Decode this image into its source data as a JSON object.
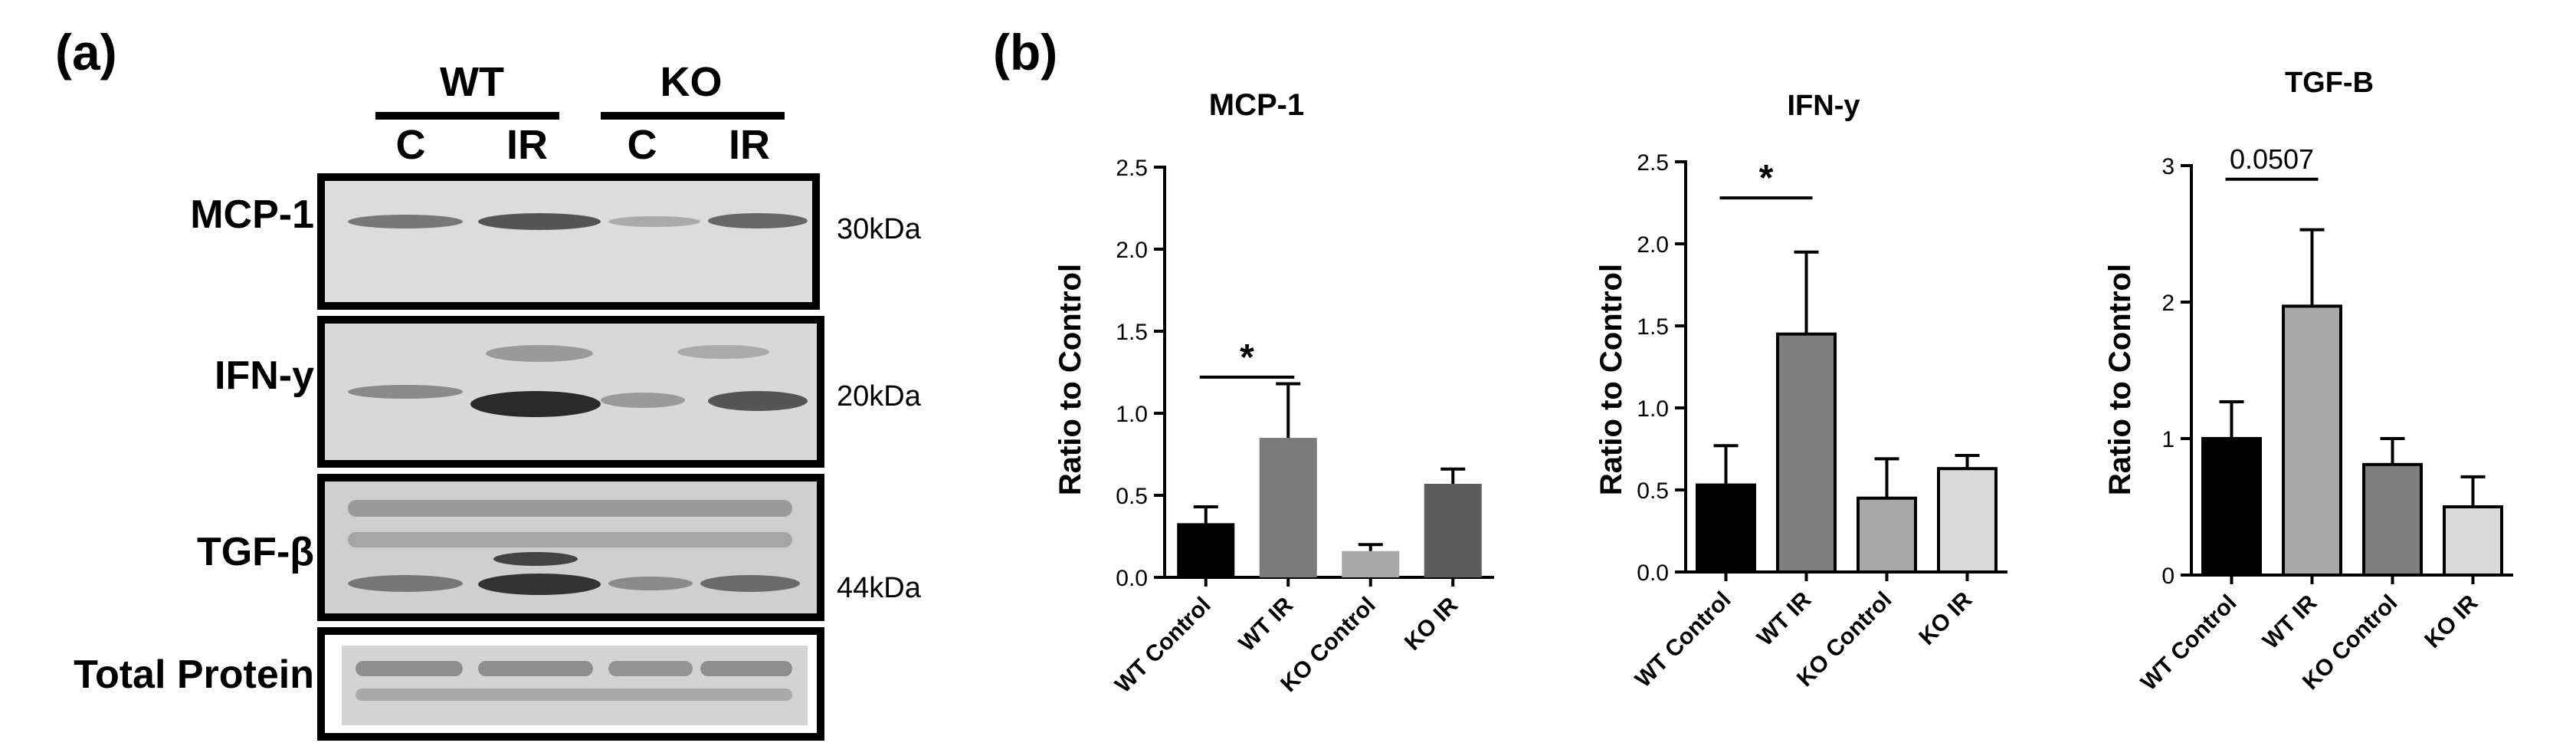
{
  "blot": {
    "panel_label": "(a)",
    "groups": [
      "WT",
      "KO"
    ],
    "lanes": [
      "C",
      "IR",
      "C",
      "IR"
    ],
    "rows": [
      {
        "label": "MCP-1",
        "kda": "30kDa"
      },
      {
        "label": "IFN-y",
        "kda": "20kDa"
      },
      {
        "label": "TGF-β",
        "kda": "44kDa"
      },
      {
        "label": "Total Protein",
        "kda": ""
      }
    ]
  },
  "charts_panel_label": "(b)",
  "chart_data": [
    {
      "type": "bar",
      "title": "MCP-1",
      "categories": [
        "WT Control",
        "WT IR",
        "KO Control",
        "KO IR"
      ],
      "values": [
        0.33,
        0.85,
        0.16,
        0.57
      ],
      "errors": [
        0.1,
        0.33,
        0.04,
        0.09
      ],
      "colors": [
        "#000000",
        "#7a7a7a",
        "#a9a9a9",
        "#5c5c5c"
      ],
      "bar_outline": false,
      "ylabel": "Ratio to Control",
      "ylim": [
        0,
        2.5
      ],
      "yticks": [
        "0.0",
        "0.5",
        "1.0",
        "1.5",
        "2.0",
        "2.5"
      ],
      "yticks_values": [
        0,
        0.5,
        1.0,
        1.5,
        2.0,
        2.5
      ],
      "annotation": {
        "text": "*",
        "from": 0,
        "to": 1,
        "level": 1.22
      }
    },
    {
      "type": "bar",
      "title": "IFN-y",
      "categories": [
        "WT Control",
        "WT IR",
        "KO Control",
        "KO IR"
      ],
      "values": [
        0.53,
        1.45,
        0.45,
        0.63
      ],
      "errors": [
        0.24,
        0.5,
        0.24,
        0.08
      ],
      "colors": [
        "#000000",
        "#7f7f7f",
        "#a8a8a8",
        "#d9d9d9"
      ],
      "bar_outline": true,
      "ylabel": "Ratio to Control",
      "ylim": [
        0,
        2.5
      ],
      "yticks": [
        "0.0",
        "0.5",
        "1.0",
        "1.5",
        "2.0",
        "2.5"
      ],
      "yticks_values": [
        0,
        0.5,
        1.0,
        1.5,
        2.0,
        2.5
      ],
      "annotation": {
        "text": "*",
        "from": 0,
        "to": 1,
        "level": 2.28
      }
    },
    {
      "type": "bar",
      "title": "TGF-B",
      "categories": [
        "WT Control",
        "WT IR",
        "KO Control",
        "KO IR"
      ],
      "values": [
        1.0,
        1.97,
        0.81,
        0.5
      ],
      "errors": [
        0.27,
        0.56,
        0.19,
        0.22
      ],
      "colors": [
        "#000000",
        "#a8a8a8",
        "#7f7f7f",
        "#d9d9d9"
      ],
      "bar_outline": true,
      "ylabel": "Ratio to Control",
      "ylim": [
        0,
        3
      ],
      "yticks": [
        "0",
        "1",
        "2",
        "3"
      ],
      "yticks_values": [
        0,
        1,
        2,
        3
      ],
      "annotation": {
        "text": "0.0507",
        "from": 0,
        "to": 1,
        "level": 2.9
      }
    }
  ]
}
